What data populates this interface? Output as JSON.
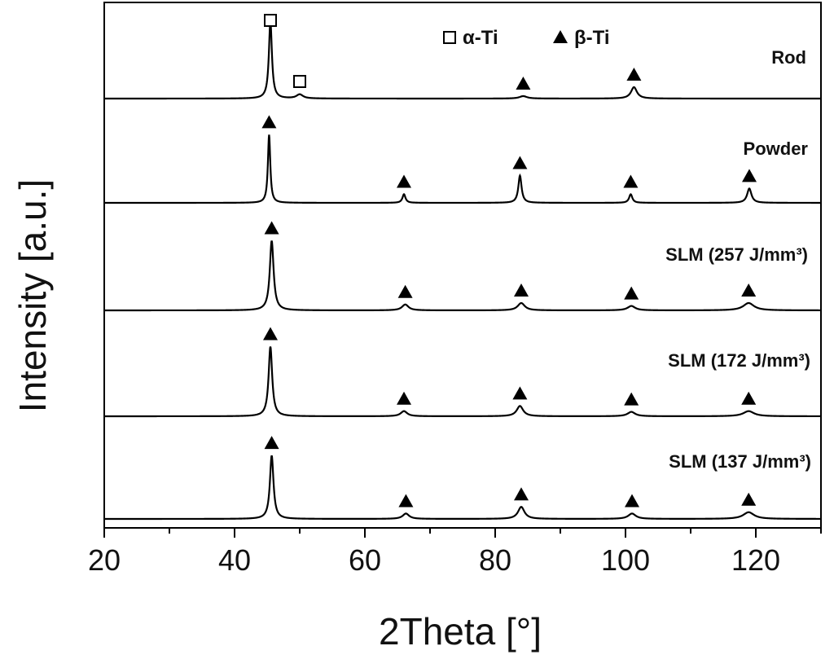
{
  "chart_data": {
    "type": "line",
    "xlabel": "2Theta [°]",
    "ylabel": "Intensity [a.u.]",
    "xlim": [
      20,
      130
    ],
    "xticks": [
      "20",
      "40",
      "60",
      "80",
      "100",
      "120"
    ],
    "y_scale": "arbitrary (stacked, offset traces)",
    "grid": false,
    "legend": {
      "placement": "top-center",
      "entries": [
        {
          "marker": "open-square",
          "label": "α-Ti"
        },
        {
          "marker": "filled-triangle",
          "label": "β-Ti"
        }
      ]
    },
    "series": [
      {
        "name": "Rod",
        "peaks": [
          {
            "x": 45.5,
            "height": 0.95,
            "width": 0.28,
            "phase": "α-Ti"
          },
          {
            "x": 50.0,
            "height": 0.05,
            "width": 0.6,
            "phase": "α-Ti"
          },
          {
            "x": 84.3,
            "height": 0.03,
            "width": 0.7,
            "phase": "β-Ti"
          },
          {
            "x": 101.3,
            "height": 0.14,
            "width": 0.55,
            "phase": "β-Ti"
          }
        ]
      },
      {
        "name": "Powder",
        "peaks": [
          {
            "x": 45.3,
            "height": 0.95,
            "width": 0.22,
            "phase": "β-Ti"
          },
          {
            "x": 66.0,
            "height": 0.12,
            "width": 0.28,
            "phase": "β-Ti"
          },
          {
            "x": 83.8,
            "height": 0.38,
            "width": 0.3,
            "phase": "β-Ti"
          },
          {
            "x": 100.8,
            "height": 0.12,
            "width": 0.3,
            "phase": "β-Ti"
          },
          {
            "x": 119.0,
            "height": 0.2,
            "width": 0.4,
            "phase": "β-Ti"
          }
        ]
      },
      {
        "name": "SLM (257 J/mm³)",
        "peaks": [
          {
            "x": 45.7,
            "height": 0.95,
            "width": 0.35,
            "phase": "β-Ti"
          },
          {
            "x": 66.2,
            "height": 0.08,
            "width": 0.6,
            "phase": "β-Ti"
          },
          {
            "x": 84.0,
            "height": 0.1,
            "width": 0.65,
            "phase": "β-Ti"
          },
          {
            "x": 100.9,
            "height": 0.06,
            "width": 0.7,
            "phase": "β-Ti"
          },
          {
            "x": 118.9,
            "height": 0.1,
            "width": 1.0,
            "phase": "β-Ti"
          }
        ]
      },
      {
        "name": "SLM (172 J/mm³)",
        "peaks": [
          {
            "x": 45.5,
            "height": 0.95,
            "width": 0.33,
            "phase": "β-Ti"
          },
          {
            "x": 66.0,
            "height": 0.07,
            "width": 0.6,
            "phase": "β-Ti"
          },
          {
            "x": 83.8,
            "height": 0.14,
            "width": 0.6,
            "phase": "β-Ti"
          },
          {
            "x": 100.9,
            "height": 0.06,
            "width": 0.7,
            "phase": "β-Ti"
          },
          {
            "x": 118.9,
            "height": 0.07,
            "width": 1.0,
            "phase": "β-Ti"
          }
        ]
      },
      {
        "name": "SLM (137 J/mm³)",
        "peaks": [
          {
            "x": 45.7,
            "height": 0.95,
            "width": 0.33,
            "phase": "β-Ti"
          },
          {
            "x": 66.3,
            "height": 0.08,
            "width": 0.6,
            "phase": "β-Ti"
          },
          {
            "x": 84.0,
            "height": 0.18,
            "width": 0.6,
            "phase": "β-Ti"
          },
          {
            "x": 101.0,
            "height": 0.08,
            "width": 0.7,
            "phase": "β-Ti"
          },
          {
            "x": 118.9,
            "height": 0.1,
            "width": 1.0,
            "phase": "β-Ti"
          }
        ]
      }
    ]
  }
}
